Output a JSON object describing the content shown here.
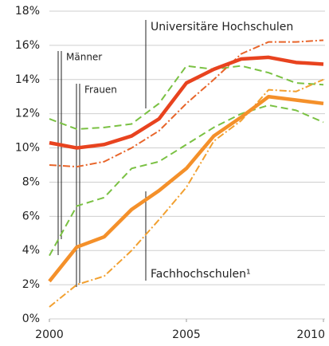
{
  "chart_data": {
    "type": "line",
    "x": [
      2000,
      2001,
      2002,
      2003,
      2004,
      2005,
      2006,
      2007,
      2008,
      2009,
      2010
    ],
    "xlim": [
      2000,
      2010
    ],
    "xticks": [
      2000,
      2005,
      2010
    ],
    "ylim": [
      0,
      18
    ],
    "yticks": [
      {
        "value": 0,
        "label": "0%"
      },
      {
        "value": 2,
        "label": "2%"
      },
      {
        "value": 4,
        "label": "4%"
      },
      {
        "value": 6,
        "label": "6%"
      },
      {
        "value": 8,
        "label": "8%"
      },
      {
        "value": 10,
        "label": "10%"
      },
      {
        "value": 12,
        "label": "12%"
      },
      {
        "value": 14,
        "label": "14%"
      },
      {
        "value": 16,
        "label": "16%"
      },
      {
        "value": 18,
        "label": "18%"
      }
    ],
    "grid": true,
    "annotations": [
      "Universitäre Hochschulen",
      "Männer",
      "Frauen",
      "Fachhochschulen¹"
    ],
    "series": [
      {
        "color": "#7ac143",
        "style": "dashed",
        "values": [
          11.7,
          11.1,
          11.2,
          11.4,
          12.6,
          14.8,
          14.6,
          14.8,
          14.4,
          13.8,
          13.7
        ]
      },
      {
        "color": "#e8652a",
        "style": "dashdot",
        "values": [
          9.0,
          8.9,
          9.2,
          10.0,
          11.0,
          12.6,
          14.0,
          15.5,
          16.2,
          16.2,
          16.3
        ]
      },
      {
        "color": "#e8431f",
        "style": "thick",
        "values": [
          10.3,
          10.0,
          10.2,
          10.7,
          11.7,
          13.8,
          14.6,
          15.2,
          15.3,
          15.0,
          14.9
        ]
      },
      {
        "color": "#7ac143",
        "style": "dashed",
        "values": [
          3.7,
          6.6,
          7.1,
          8.8,
          9.2,
          10.2,
          11.2,
          12.0,
          12.5,
          12.2,
          11.5
        ]
      },
      {
        "color": "#f2a030",
        "style": "dashdot",
        "values": [
          0.7,
          2.0,
          2.5,
          4.0,
          5.8,
          7.7,
          10.4,
          11.6,
          13.4,
          13.3,
          14.0
        ]
      },
      {
        "color": "#f4902a",
        "style": "thick",
        "values": [
          2.2,
          4.2,
          4.8,
          6.4,
          7.5,
          8.8,
          10.7,
          11.8,
          13.0,
          12.8,
          12.6
        ]
      }
    ]
  }
}
